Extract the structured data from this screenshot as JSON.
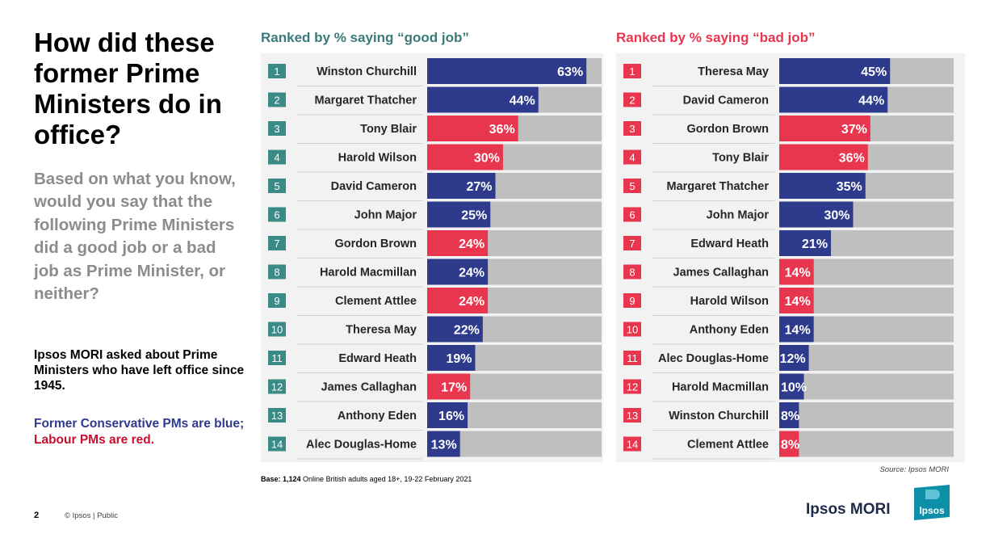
{
  "title": "How did these former Prime Ministers do in office?",
  "question": "Based on what you know, would you say that the following Prime Ministers did a good job or a bad job as Prime Minister, or neither?",
  "note": "Ipsos MORI asked about Prime Ministers who have left office since 1945.",
  "legend_note": {
    "blue_text": "Former Conservative PMs are blue;",
    "red_text": "Labour PMs are red."
  },
  "base_note": {
    "bold": "Base: 1,124",
    "rest": " Online British adults aged 18+,  19-22 February 2021"
  },
  "source": "Source: Ipsos MORI",
  "footer": {
    "page_number": "2",
    "copyright": "© Ipsos  |  Public"
  },
  "brand": {
    "name": "Ipsos MORI",
    "logo_text": "Ipsos"
  },
  "colors": {
    "conservative": "#2e3a8c",
    "labour": "#e8364f",
    "track": "#bfbfbf",
    "panel": "#f2f2f2",
    "good_title": "#3a7a78",
    "bad_title": "#e8364f",
    "good_rank_box": "#3a8a86",
    "bad_rank_box": "#e8364f"
  },
  "chart_data": [
    {
      "type": "bar",
      "title": "Ranked by % saying “good job”",
      "xlim": [
        0,
        100
      ],
      "categories": [
        "Winston Churchill",
        "Margaret Thatcher",
        "Tony Blair",
        "Harold Wilson",
        "David Cameron",
        "John Major",
        "Gordon Brown",
        "Harold Macmillan",
        "Clement Attlee",
        "Theresa May",
        "Edward Heath",
        "James Callaghan",
        "Anthony Eden",
        "Alec Douglas-Home"
      ],
      "ranks": [
        "1",
        "2",
        "3",
        "4",
        "5",
        "6",
        "7",
        "8",
        "9",
        "10",
        "11",
        "12",
        "13",
        "14"
      ],
      "values": [
        63,
        44,
        36,
        30,
        27,
        25,
        24,
        24,
        24,
        22,
        19,
        17,
        16,
        13
      ],
      "labels": [
        "63%",
        "44%",
        "36%",
        "30%",
        "27%",
        "25%",
        "24%",
        "24%",
        "24%",
        "22%",
        "19%",
        "17%",
        "16%",
        "13%"
      ],
      "party": [
        "con",
        "con",
        "lab",
        "lab",
        "con",
        "con",
        "lab",
        "con",
        "lab",
        "con",
        "con",
        "lab",
        "con",
        "con"
      ]
    },
    {
      "type": "bar",
      "title": "Ranked by % saying “bad job”",
      "xlim": [
        0,
        100
      ],
      "categories": [
        "Theresa May",
        "David Cameron",
        "Gordon Brown",
        "Tony Blair",
        "Margaret Thatcher",
        "John Major",
        "Edward Heath",
        "James Callaghan",
        "Harold Wilson",
        "Anthony Eden",
        "Alec Douglas-Home",
        "Harold Macmillan",
        "Winston Churchill",
        "Clement Attlee"
      ],
      "ranks": [
        "1",
        "2",
        "3",
        "4",
        "5",
        "6",
        "7",
        "8",
        "9",
        "10",
        "11",
        "12",
        "13",
        "14"
      ],
      "values": [
        45,
        44,
        37,
        36,
        35,
        30,
        21,
        14,
        14,
        14,
        12,
        10,
        8,
        8
      ],
      "labels": [
        "45%",
        "44%",
        "37%",
        "36%",
        "35%",
        "30%",
        "21%",
        "14%",
        "14%",
        "14%",
        "12%",
        "10%",
        "8%",
        "8%"
      ],
      "party": [
        "con",
        "con",
        "lab",
        "lab",
        "con",
        "con",
        "con",
        "lab",
        "lab",
        "con",
        "con",
        "con",
        "con",
        "lab"
      ]
    }
  ]
}
